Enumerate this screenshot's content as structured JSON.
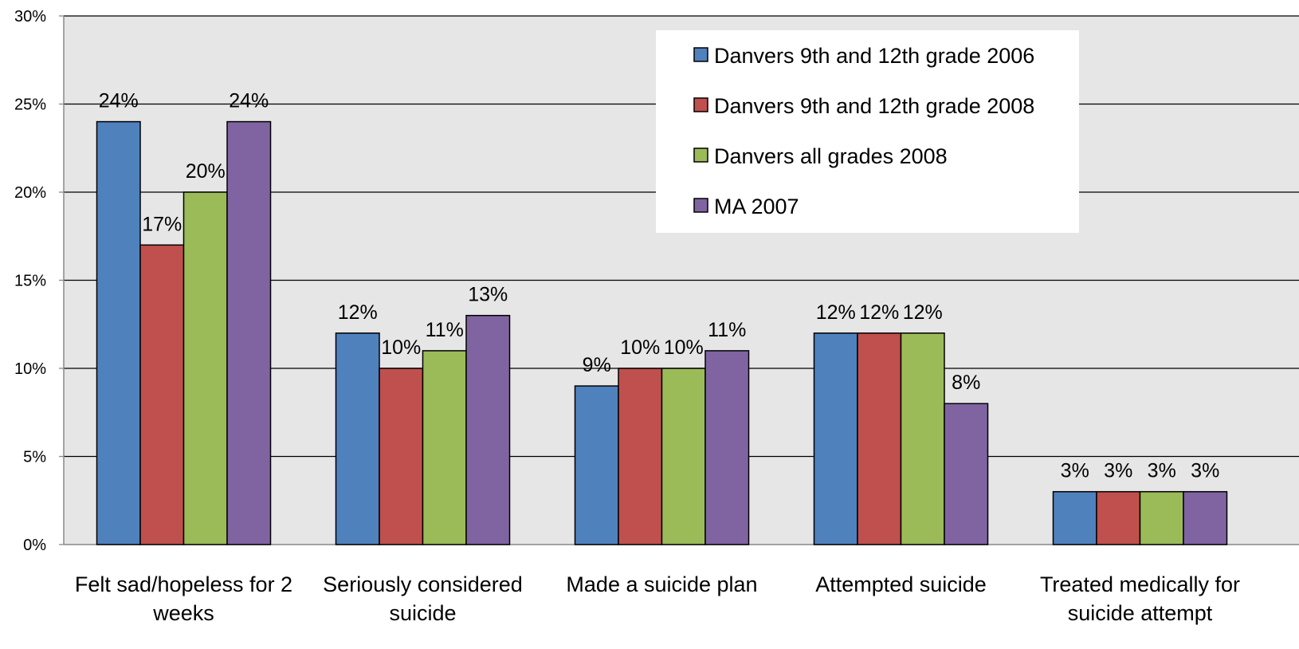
{
  "chart_data": {
    "type": "bar",
    "title": "",
    "xlabel": "",
    "ylabel": "",
    "ylim": [
      0,
      30
    ],
    "y_ticks": [
      "0%",
      "5%",
      "10%",
      "15%",
      "20%",
      "25%",
      "30%"
    ],
    "grid": true,
    "legend_position": "top-right",
    "categories": [
      [
        "Felt sad/hopeless for 2",
        "weeks"
      ],
      [
        "Seriously considered",
        "suicide"
      ],
      [
        "Made a suicide plan"
      ],
      [
        "Attempted suicide"
      ],
      [
        "Treated medically for",
        "suicide attempt"
      ]
    ],
    "series": [
      {
        "name": "Danvers 9th and 12th grade 2006",
        "color": "#4f81bd",
        "values": [
          24,
          12,
          9,
          12,
          3
        ],
        "labels": [
          "24%",
          "12%",
          "9%",
          "12%",
          "3%"
        ]
      },
      {
        "name": "Danvers 9th and 12th grade 2008",
        "color": "#c0504d",
        "values": [
          17,
          10,
          10,
          12,
          3
        ],
        "labels": [
          "17%",
          "10%",
          "10%",
          "12%",
          "3%"
        ]
      },
      {
        "name": "Danvers all grades 2008",
        "color": "#9bbb59",
        "values": [
          20,
          11,
          10,
          12,
          3
        ],
        "labels": [
          "20%",
          "11%",
          "10%",
          "12%",
          "3%"
        ]
      },
      {
        "name": "MA 2007",
        "color": "#8064a2",
        "values": [
          24,
          13,
          11,
          8,
          3
        ],
        "labels": [
          "24%",
          "13%",
          "11%",
          "8%",
          "3%"
        ]
      }
    ],
    "plot_background": "#e6e6e6",
    "gridline_color": "#000000"
  }
}
